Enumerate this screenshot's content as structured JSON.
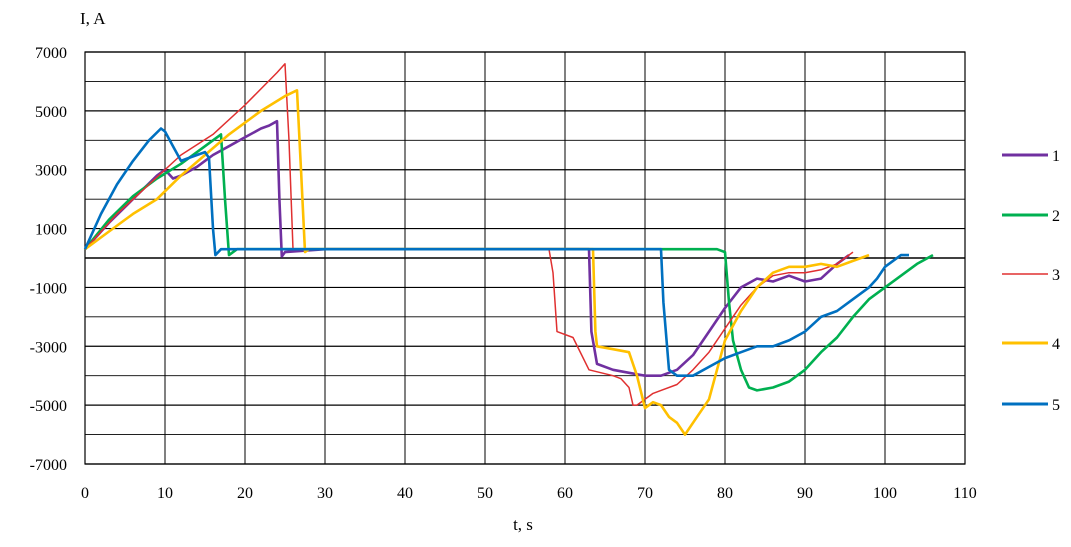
{
  "chart_data": {
    "type": "line",
    "title": "",
    "xlabel": "t, s",
    "ylabel": "I, A",
    "xlim": [
      0,
      110
    ],
    "ylim": [
      -7000,
      7000
    ],
    "x_ticks": [
      0,
      10,
      20,
      30,
      40,
      50,
      60,
      70,
      80,
      90,
      100,
      110
    ],
    "y_ticks": [
      7000,
      5000,
      3000,
      1000,
      -1000,
      -3000,
      -5000,
      -7000
    ],
    "grid": true,
    "legend_position": "right",
    "series": [
      {
        "name": "1",
        "color": "#7030a0",
        "points": [
          [
            0,
            300
          ],
          [
            3,
            1200
          ],
          [
            6,
            2000
          ],
          [
            9,
            2800
          ],
          [
            10,
            3000
          ],
          [
            11,
            2700
          ],
          [
            12,
            2800
          ],
          [
            14,
            3100
          ],
          [
            16,
            3500
          ],
          [
            18,
            3800
          ],
          [
            20,
            4100
          ],
          [
            22,
            4400
          ],
          [
            23,
            4500
          ],
          [
            24,
            4650
          ],
          [
            24.3,
            2000
          ],
          [
            24.6,
            50
          ],
          [
            25,
            200
          ],
          [
            30,
            300
          ],
          [
            40,
            300
          ],
          [
            50,
            300
          ],
          [
            60,
            300
          ],
          [
            63,
            300
          ],
          [
            63.3,
            -2500
          ],
          [
            64,
            -3600
          ],
          [
            66,
            -3800
          ],
          [
            68,
            -3900
          ],
          [
            70,
            -4000
          ],
          [
            72,
            -4000
          ],
          [
            74,
            -3800
          ],
          [
            76,
            -3300
          ],
          [
            78,
            -2500
          ],
          [
            80,
            -1700
          ],
          [
            82,
            -1000
          ],
          [
            84,
            -700
          ],
          [
            86,
            -800
          ],
          [
            88,
            -600
          ],
          [
            90,
            -800
          ],
          [
            92,
            -700
          ],
          [
            94,
            -200
          ],
          [
            95.5,
            100
          ]
        ]
      },
      {
        "name": "2",
        "color": "#00b050",
        "points": [
          [
            0,
            300
          ],
          [
            3,
            1300
          ],
          [
            6,
            2100
          ],
          [
            9,
            2700
          ],
          [
            12,
            3200
          ],
          [
            15,
            3800
          ],
          [
            17,
            4200
          ],
          [
            17.5,
            2000
          ],
          [
            18,
            100
          ],
          [
            19,
            300
          ],
          [
            30,
            300
          ],
          [
            40,
            300
          ],
          [
            50,
            300
          ],
          [
            60,
            300
          ],
          [
            70,
            300
          ],
          [
            79,
            300
          ],
          [
            80,
            200
          ],
          [
            80.5,
            -1500
          ],
          [
            81,
            -2800
          ],
          [
            82,
            -3800
          ],
          [
            83,
            -4400
          ],
          [
            84,
            -4500
          ],
          [
            86,
            -4400
          ],
          [
            88,
            -4200
          ],
          [
            90,
            -3800
          ],
          [
            92,
            -3200
          ],
          [
            94,
            -2700
          ],
          [
            96,
            -2000
          ],
          [
            98,
            -1400
          ],
          [
            100,
            -1000
          ],
          [
            102,
            -600
          ],
          [
            104,
            -200
          ],
          [
            106,
            100
          ]
        ]
      },
      {
        "name": "3",
        "color": "#e03030",
        "points": [
          [
            0,
            300
          ],
          [
            4,
            1500
          ],
          [
            8,
            2500
          ],
          [
            12,
            3500
          ],
          [
            16,
            4200
          ],
          [
            20,
            5200
          ],
          [
            24,
            6300
          ],
          [
            25,
            6600
          ],
          [
            25.5,
            4000
          ],
          [
            26,
            300
          ],
          [
            30,
            300
          ],
          [
            40,
            300
          ],
          [
            50,
            300
          ],
          [
            58,
            300
          ],
          [
            58.5,
            -500
          ],
          [
            59,
            -2500
          ],
          [
            61,
            -2700
          ],
          [
            63,
            -3800
          ],
          [
            66,
            -4000
          ],
          [
            67,
            -4100
          ],
          [
            68,
            -4400
          ],
          [
            68.5,
            -5000
          ],
          [
            69,
            -5000
          ],
          [
            71,
            -4600
          ],
          [
            72,
            -4500
          ],
          [
            74,
            -4300
          ],
          [
            76,
            -3800
          ],
          [
            78,
            -3200
          ],
          [
            80,
            -2400
          ],
          [
            82,
            -1600
          ],
          [
            84,
            -1000
          ],
          [
            86,
            -600
          ],
          [
            88,
            -500
          ],
          [
            90,
            -500
          ],
          [
            92,
            -400
          ],
          [
            94,
            -200
          ],
          [
            96,
            200
          ]
        ]
      },
      {
        "name": "4",
        "color": "#ffc000",
        "points": [
          [
            0,
            300
          ],
          [
            3,
            900
          ],
          [
            6,
            1500
          ],
          [
            9,
            2000
          ],
          [
            12,
            2800
          ],
          [
            15,
            3500
          ],
          [
            18,
            4200
          ],
          [
            22,
            5000
          ],
          [
            25,
            5500
          ],
          [
            26.5,
            5700
          ],
          [
            27,
            3000
          ],
          [
            27.5,
            200
          ],
          [
            28,
            300
          ],
          [
            30,
            300
          ],
          [
            40,
            300
          ],
          [
            50,
            300
          ],
          [
            60,
            300
          ],
          [
            62,
            300
          ],
          [
            63.5,
            300
          ],
          [
            63.8,
            -2500
          ],
          [
            64,
            -3000
          ],
          [
            66,
            -3100
          ],
          [
            68,
            -3200
          ],
          [
            69,
            -4000
          ],
          [
            70,
            -5100
          ],
          [
            71,
            -4900
          ],
          [
            72,
            -5000
          ],
          [
            73,
            -5400
          ],
          [
            74,
            -5600
          ],
          [
            75,
            -6000
          ],
          [
            76,
            -5600
          ],
          [
            78,
            -4800
          ],
          [
            79,
            -3800
          ],
          [
            80,
            -2800
          ],
          [
            82,
            -1800
          ],
          [
            84,
            -1000
          ],
          [
            86,
            -500
          ],
          [
            88,
            -300
          ],
          [
            90,
            -300
          ],
          [
            92,
            -200
          ],
          [
            94,
            -300
          ],
          [
            96,
            -100
          ],
          [
            98,
            100
          ]
        ]
      },
      {
        "name": "5",
        "color": "#0070c0",
        "points": [
          [
            0,
            300
          ],
          [
            2,
            1500
          ],
          [
            4,
            2500
          ],
          [
            6,
            3300
          ],
          [
            8,
            4000
          ],
          [
            9.5,
            4400
          ],
          [
            10,
            4300
          ],
          [
            11,
            3800
          ],
          [
            12,
            3300
          ],
          [
            13,
            3400
          ],
          [
            14,
            3500
          ],
          [
            15,
            3600
          ],
          [
            15.5,
            3400
          ],
          [
            16,
            1000
          ],
          [
            16.3,
            100
          ],
          [
            17,
            300
          ],
          [
            30,
            300
          ],
          [
            40,
            300
          ],
          [
            50,
            300
          ],
          [
            60,
            300
          ],
          [
            70,
            300
          ],
          [
            72,
            300
          ],
          [
            72.3,
            -1500
          ],
          [
            73,
            -3800
          ],
          [
            74,
            -4000
          ],
          [
            76,
            -4000
          ],
          [
            78,
            -3700
          ],
          [
            80,
            -3400
          ],
          [
            82,
            -3200
          ],
          [
            84,
            -3000
          ],
          [
            86,
            -3000
          ],
          [
            88,
            -2800
          ],
          [
            90,
            -2500
          ],
          [
            92,
            -2000
          ],
          [
            94,
            -1800
          ],
          [
            96,
            -1400
          ],
          [
            98,
            -1000
          ],
          [
            99,
            -700
          ],
          [
            100,
            -300
          ],
          [
            102,
            100
          ],
          [
            103,
            100
          ]
        ]
      }
    ]
  }
}
